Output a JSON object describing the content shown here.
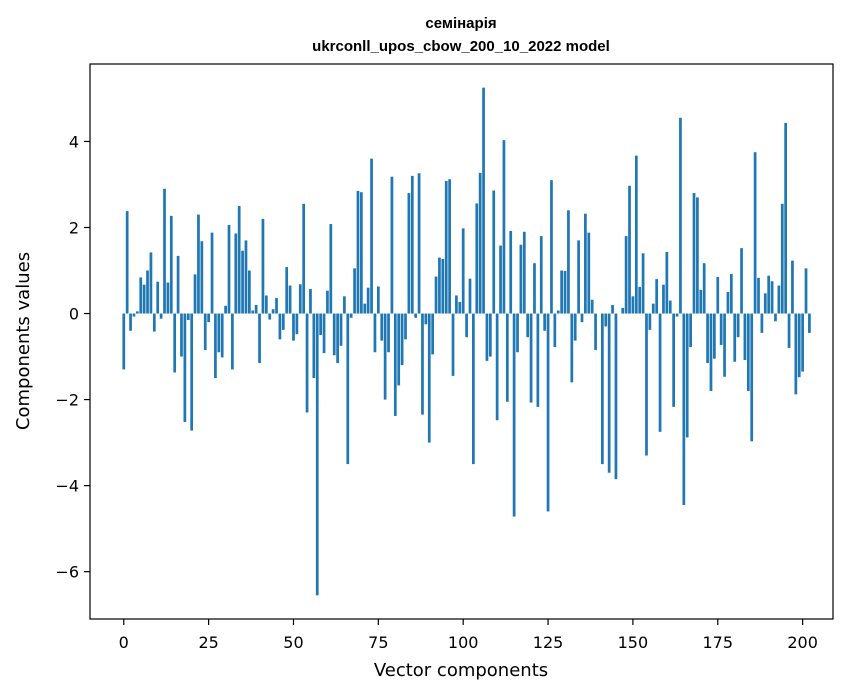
{
  "chart_data": {
    "type": "bar",
    "title_line1": "семінарія",
    "title_line2": "ukrconll_upos_cbow_200_10_2022 model",
    "xlabel": "Vector components",
    "ylabel": "Components values",
    "xlim": [
      -9.95,
      208.95
    ],
    "ylim": [
      -7.1,
      5.8
    ],
    "xticks": [
      0,
      25,
      50,
      75,
      100,
      125,
      150,
      175,
      200
    ],
    "yticks": [
      -6,
      -4,
      -2,
      0,
      2,
      4
    ],
    "ytick_labels": [
      "−6",
      "−4",
      "−2",
      "0",
      "2",
      "4"
    ],
    "bar_color": "#1f77b4",
    "grid": false,
    "values": [
      -1.3,
      2.38,
      -0.4,
      -0.07,
      0.05,
      0.84,
      0.67,
      1.0,
      1.42,
      -0.42,
      0.74,
      -0.12,
      2.9,
      0.72,
      2.27,
      -1.37,
      1.34,
      -1.0,
      -2.52,
      -0.15,
      -2.72,
      0.91,
      2.3,
      1.68,
      -0.85,
      -0.2,
      1.88,
      -1.5,
      -0.9,
      -1.02,
      0.18,
      2.06,
      -1.3,
      1.86,
      2.5,
      1.46,
      1.7,
      1.0,
      0.07,
      0.2,
      -1.15,
      2.2,
      0.42,
      -0.14,
      0.1,
      0.36,
      -0.6,
      -0.38,
      1.08,
      0.65,
      -0.63,
      -0.48,
      0.68,
      2.55,
      -2.3,
      0.57,
      -1.5,
      -6.55,
      -0.5,
      -0.92,
      0.53,
      2.08,
      -0.97,
      -1.15,
      -0.75,
      0.4,
      -3.5,
      -0.1,
      1.05,
      2.85,
      2.82,
      0.23,
      0.6,
      3.6,
      -0.9,
      0.63,
      -0.63,
      -2.0,
      -0.9,
      3.18,
      -2.38,
      -1.67,
      -1.2,
      -0.6,
      2.8,
      3.2,
      -0.1,
      3.26,
      -2.35,
      -0.25,
      -3.0,
      -0.95,
      0.86,
      1.3,
      1.27,
      3.08,
      3.12,
      -1.45,
      0.42,
      0.27,
      1.98,
      -0.55,
      0.81,
      -3.5,
      2.56,
      3.27,
      5.25,
      -1.1,
      -1.0,
      2.86,
      -2.48,
      1.58,
      4.03,
      -2.05,
      1.92,
      -4.72,
      -0.9,
      1.6,
      1.9,
      -0.55,
      -2.07,
      1.17,
      -2.17,
      1.8,
      -0.4,
      -4.6,
      3.1,
      -0.78,
      0.07,
      1.0,
      0.99,
      2.4,
      -1.6,
      -0.63,
      1.7,
      -0.2,
      2.32,
      1.88,
      0.32,
      -0.85,
      0.0,
      -3.5,
      -0.3,
      -3.7,
      0.2,
      -3.85,
      0.0,
      0.13,
      1.8,
      2.97,
      0.4,
      3.67,
      0.62,
      1.4,
      -3.3,
      -0.38,
      0.23,
      0.8,
      -2.75,
      0.67,
      1.43,
      0.3,
      -2.17,
      -0.07,
      4.55,
      -4.45,
      -2.88,
      -0.78,
      2.8,
      2.7,
      0.55,
      1.17,
      -1.15,
      -1.8,
      -1.05,
      0.85,
      -0.73,
      -1.47,
      0.5,
      0.92,
      -1.12,
      -0.55,
      1.52,
      -1.08,
      -1.8,
      -2.97,
      3.75,
      0.83,
      -0.45,
      0.47,
      0.88,
      0.75,
      -0.18,
      0.65,
      2.55,
      4.43,
      -0.8,
      1.23,
      -1.88,
      -1.48,
      -1.35,
      1.05,
      -0.45
    ]
  }
}
